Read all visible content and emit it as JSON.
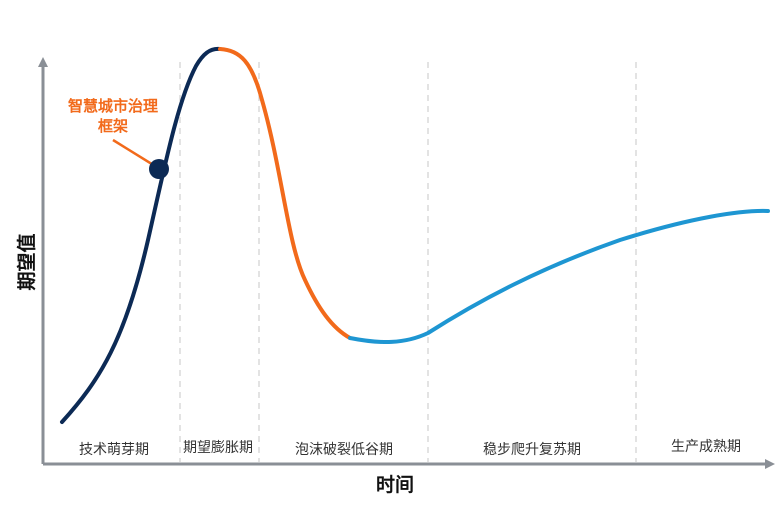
{
  "axes": {
    "y_label": "期望值",
    "x_label": "时间"
  },
  "phases": [
    {
      "label": "技术萌芽期"
    },
    {
      "label": "期望膨胀期"
    },
    {
      "label": "泡沫破裂低谷期"
    },
    {
      "label": "稳步爬升复苏期"
    },
    {
      "label": "生产成熟期"
    }
  ],
  "marker": {
    "label_line1": "智慧城市治理",
    "label_line2": "框架"
  },
  "colors": {
    "axis": "#8a8f96",
    "divider": "#d0d0d0",
    "segment_rise": "#0c2a55",
    "segment_fall": "#f26a1b",
    "segment_recovery": "#1e96d2",
    "marker_fill": "#0c2a55",
    "marker_label": "#f26a1b",
    "phase_text": "#333333",
    "axis_text": "#111111"
  }
}
